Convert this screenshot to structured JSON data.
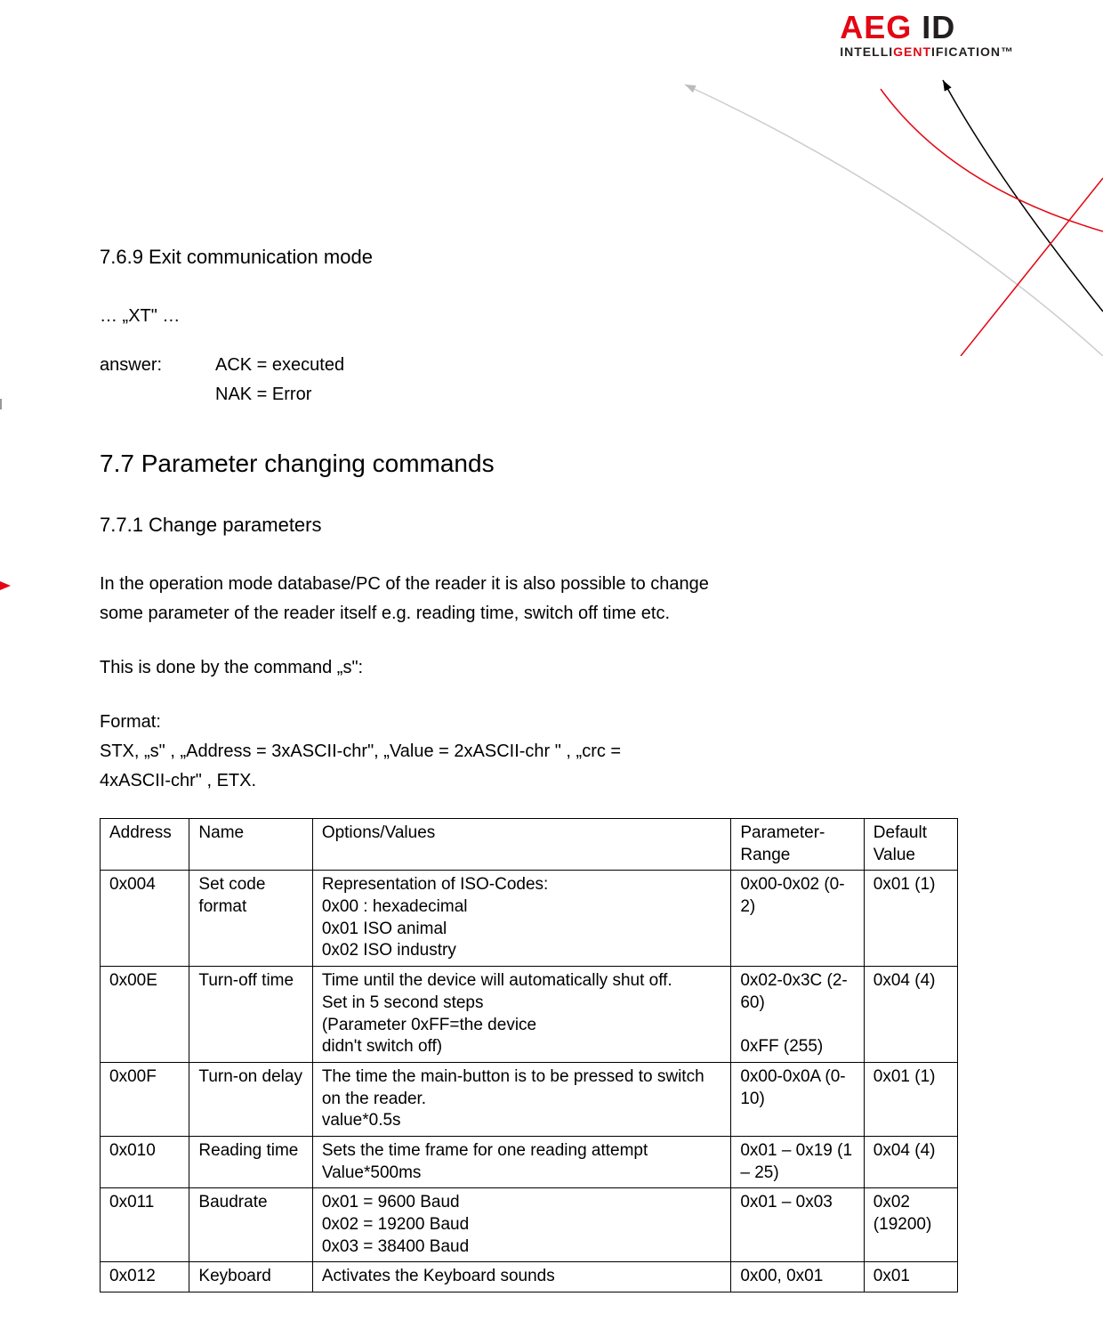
{
  "logo": {
    "brand1": "AEG",
    "brand2": "ID",
    "tagline_prefix": "INTELLI",
    "tagline_mid": "GENT",
    "tagline_suffix": "IFICATION™"
  },
  "section769": {
    "heading": "7.6.9  Exit communication mode",
    "cmd": "… „XT\" …",
    "answer_label": "answer:",
    "answer_line1": "ACK = executed",
    "answer_line2": "NAK = Error"
  },
  "section77": {
    "heading": "7.7   Parameter changing commands"
  },
  "section771": {
    "heading": "7.7.1  Change parameters",
    "p1a": "In the operation mode database/PC of the reader it is also possible to change",
    "p1b": "some parameter of the reader itself e.g. reading time, switch off time etc.",
    "p2": "This is done by the command „s\":",
    "p3a": "Format:",
    "p3b": "STX, „s\" , „Address =  3xASCII-chr\", „Value = 2xASCII-chr \" , „crc =",
    "p3c": "4xASCII-chr\" , ETX."
  },
  "table": {
    "columns": [
      "Address",
      "Name",
      "Options/Values",
      "Parameter-Range",
      "Default Value"
    ],
    "rows": [
      {
        "address": "0x004",
        "name": "Set code format",
        "options": "Representation of ISO-Codes:\n0x00 : hexadecimal\n0x01 ISO animal\n0x02 ISO industry",
        "range": "0x00-0x02 (0-2)",
        "default": "0x01 (1)"
      },
      {
        "address": "0x00E",
        "name": "Turn-off time",
        "options": "Time until the device will automatically shut off.\nSet in 5 second steps\n(Parameter 0xFF=the device\ndidn't switch off)",
        "range": "0x02-0x3C (2-60)\n\n0xFF (255)",
        "default": "0x04 (4)"
      },
      {
        "address": "0x00F",
        "name": "Turn-on delay",
        "options": "The time the main-button is to be pressed to switch on the reader.\nvalue*0.5s",
        "range": "0x00-0x0A (0-10)",
        "default": "0x01 (1)"
      },
      {
        "address": "0x010",
        "name": "Reading time",
        "options": "Sets the time frame for one reading attempt Value*500ms",
        "range": "0x01 – 0x19 (1 – 25)",
        "default": "0x04 (4)"
      },
      {
        "address": "0x011",
        "name": "Baudrate",
        "options": "0x01 = 9600 Baud\n0x02 = 19200 Baud\n0x03 = 38400 Baud",
        "range": "0x01 – 0x03",
        "default": "0x02 (19200)"
      },
      {
        "address": "0x012",
        "name": "Keyboard",
        "options": "Activates the Keyboard sounds",
        "range": "0x00, 0x01",
        "default": "0x01"
      }
    ]
  }
}
